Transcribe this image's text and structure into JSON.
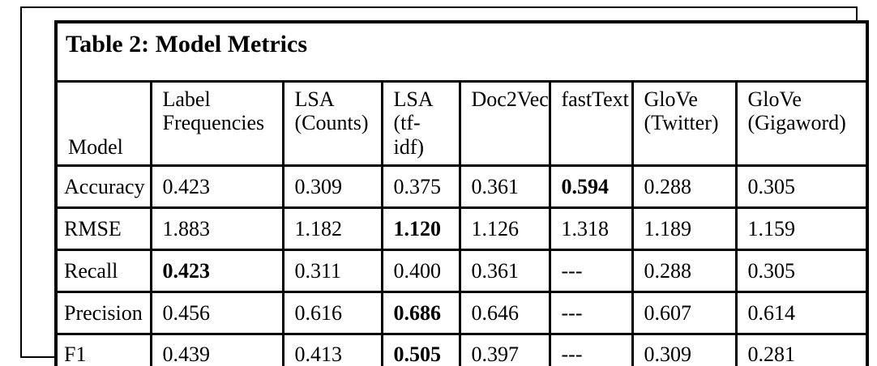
{
  "table": {
    "title": "Table 2: Model Metrics",
    "header": {
      "model_label": "Model",
      "columns": [
        {
          "lines": [
            "Label",
            "Frequencies"
          ]
        },
        {
          "lines": [
            "LSA",
            "(Counts)"
          ]
        },
        {
          "lines": [
            "LSA",
            "(tf-idf)"
          ]
        },
        {
          "lines": [
            "Doc2Vec"
          ]
        },
        {
          "lines": [
            "fastText"
          ]
        },
        {
          "lines": [
            "GloVe",
            "(Twitter)"
          ]
        },
        {
          "lines": [
            "GloVe",
            "(Gigaword)"
          ]
        }
      ]
    },
    "rows": [
      {
        "label": "Accuracy",
        "values": [
          "0.423",
          "0.309",
          "0.375",
          "0.361",
          "0.594",
          "0.288",
          "0.305"
        ],
        "bold_indices": [
          4
        ]
      },
      {
        "label": "RMSE",
        "values": [
          "1.883",
          "1.182",
          "1.120",
          "1.126",
          "1.318",
          "1.189",
          "1.159"
        ],
        "bold_indices": [
          2
        ]
      },
      {
        "label": "Recall",
        "values": [
          "0.423",
          "0.311",
          "0.400",
          "0.361",
          "---",
          "0.288",
          "0.305"
        ],
        "bold_indices": [
          0
        ]
      },
      {
        "label": "Precision",
        "values": [
          "0.456",
          "0.616",
          "0.686",
          "0.646",
          "---",
          "0.607",
          "0.614"
        ],
        "bold_indices": [
          2
        ]
      },
      {
        "label": "F1",
        "values": [
          "0.439",
          "0.413",
          "0.505",
          "0.397",
          "---",
          "0.309",
          "0.281"
        ],
        "bold_indices": [
          2
        ]
      }
    ],
    "colors": {
      "border": "#000000",
      "text": "#000000",
      "background": "#ffffff"
    }
  }
}
